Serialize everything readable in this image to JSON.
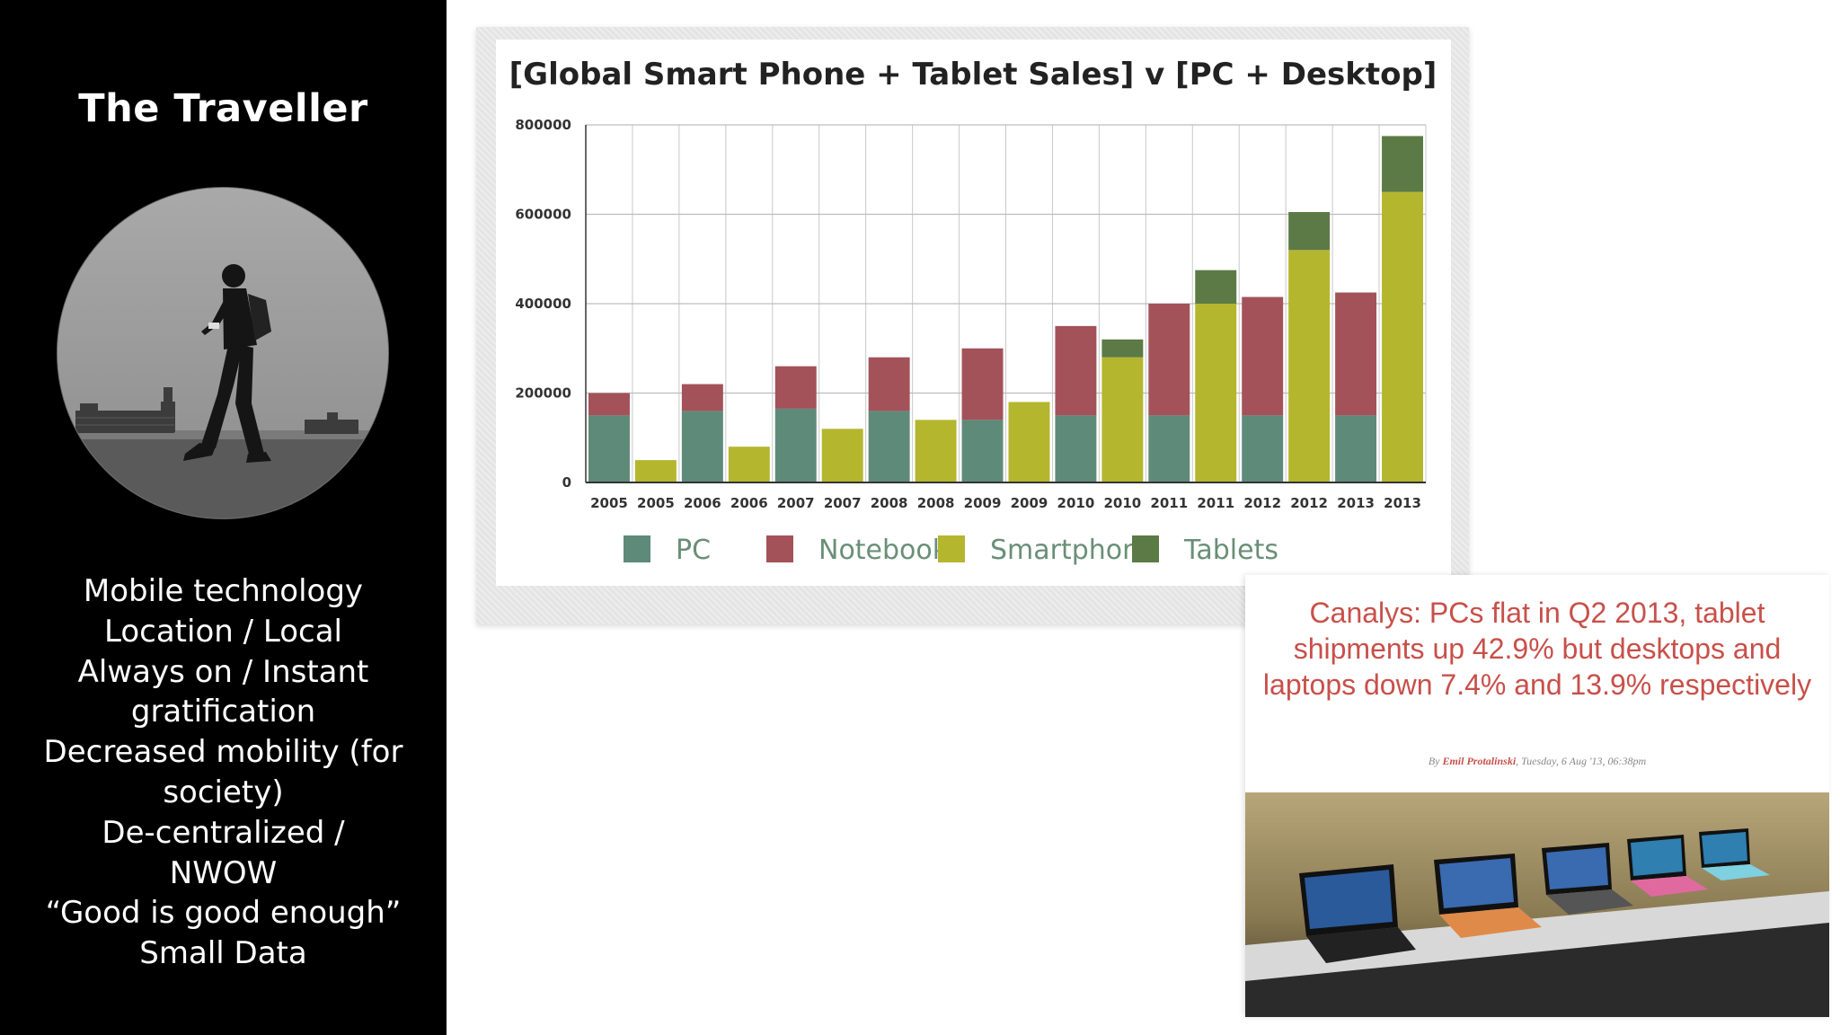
{
  "sidebar": {
    "title": "The Traveller",
    "items": [
      "Mobile technology",
      "Location / Local",
      "Always on / Instant",
      "gratification",
      "Decreased mobility (for",
      "society)",
      "De-centralized /",
      "NWOW",
      "“Good is good enough”",
      "Small Data"
    ]
  },
  "chart_data": {
    "type": "bar",
    "stacked": true,
    "title": "[Global Smart Phone + Tablet Sales] v [PC + Desktop]",
    "categories": [
      "2005",
      "2005",
      "2006",
      "2006",
      "2007",
      "2007",
      "2008",
      "2008",
      "2009",
      "2009",
      "2010",
      "2010",
      "2011",
      "2011",
      "2012",
      "2012",
      "2013",
      "2013"
    ],
    "yticks": [
      "0",
      "200000",
      "400000",
      "600000",
      "800000"
    ],
    "ylim": [
      0,
      800000
    ],
    "grid": true,
    "legend_position": "bottom",
    "series": [
      {
        "name": "PC",
        "color": "#5e8a7a",
        "values": [
          150000,
          0,
          160000,
          0,
          165000,
          0,
          160000,
          0,
          140000,
          0,
          150000,
          0,
          150000,
          0,
          150000,
          0,
          150000,
          0
        ]
      },
      {
        "name": "Notebook",
        "color": "#a3525a",
        "values": [
          50000,
          0,
          60000,
          0,
          95000,
          0,
          120000,
          0,
          160000,
          0,
          200000,
          0,
          250000,
          0,
          265000,
          0,
          275000,
          0
        ]
      },
      {
        "name": "Smartphone",
        "color": "#b4b62e",
        "values": [
          0,
          50000,
          0,
          80000,
          0,
          120000,
          0,
          140000,
          0,
          180000,
          0,
          280000,
          0,
          400000,
          0,
          520000,
          0,
          650000
        ]
      },
      {
        "name": "Tablets",
        "color": "#5c7a45",
        "values": [
          0,
          0,
          0,
          0,
          0,
          0,
          0,
          0,
          0,
          0,
          0,
          40000,
          0,
          75000,
          0,
          85000,
          0,
          125000
        ]
      }
    ]
  },
  "article": {
    "headline": "Canalys: PCs flat in Q2 2013, tablet shipments up 42.9% but desktops and laptops down 7.4% and 13.9% respectively",
    "byline_prefix": "By ",
    "byline_author": "Emil Protalinski",
    "byline_date": ", Tuesday, 6 Aug '13, 06:38pm"
  }
}
